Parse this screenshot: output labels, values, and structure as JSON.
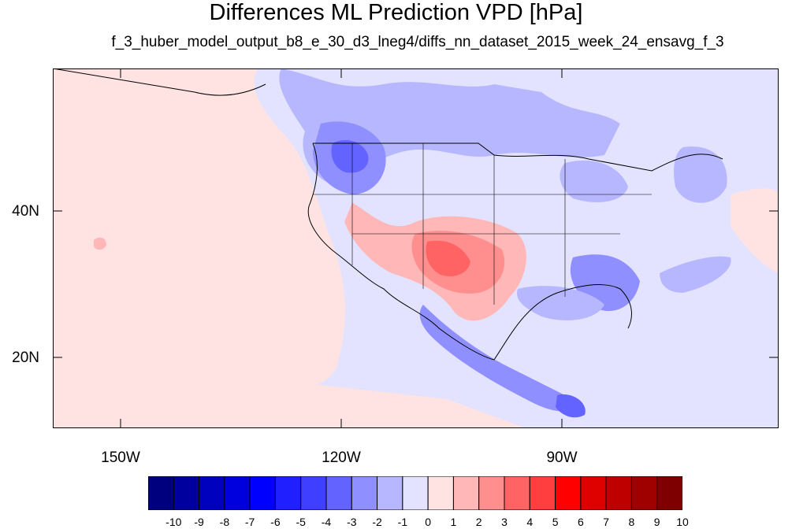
{
  "title": "Differences ML Prediction VPD [hPa]",
  "subtitle": "f_3_huber_model_output_b8_e_30_d3_lneg4/diffs_nn_dataset_2015_week_24_ensavg_f_3",
  "lat_labels": [
    "40N",
    "20N"
  ],
  "lon_labels": [
    "150W",
    "120W",
    "90W"
  ],
  "colorbar": {
    "labels": [
      "-10",
      "-9",
      "-8",
      "-7",
      "-6",
      "-5",
      "-4",
      "-3",
      "-2",
      "-1",
      "0",
      "1",
      "2",
      "3",
      "4",
      "5",
      "6",
      "7",
      "8",
      "9",
      "10"
    ],
    "colors": [
      "#00007f",
      "#00009f",
      "#0000bf",
      "#0000df",
      "#0000ff",
      "#1f1fff",
      "#3f3fff",
      "#6363ff",
      "#8f8fff",
      "#b7b7ff",
      "#e3e3ff",
      "#ffe3e3",
      "#ffb7b7",
      "#ff8f8f",
      "#ff6363",
      "#ff3f3f",
      "#ff0000",
      "#df0000",
      "#bf0000",
      "#9f0000",
      "#7f0000"
    ]
  },
  "map_colors": {
    "ocean_base": "#e3e3ff",
    "pacific_positive": "#ffe3e3",
    "blue_light": "#b7b7ff",
    "blue_mid": "#8f8fff",
    "blue_strong": "#6363ff",
    "red_light": "#ffb7b7",
    "red_mid": "#ff8f8f",
    "red_strong": "#ff6363"
  }
}
